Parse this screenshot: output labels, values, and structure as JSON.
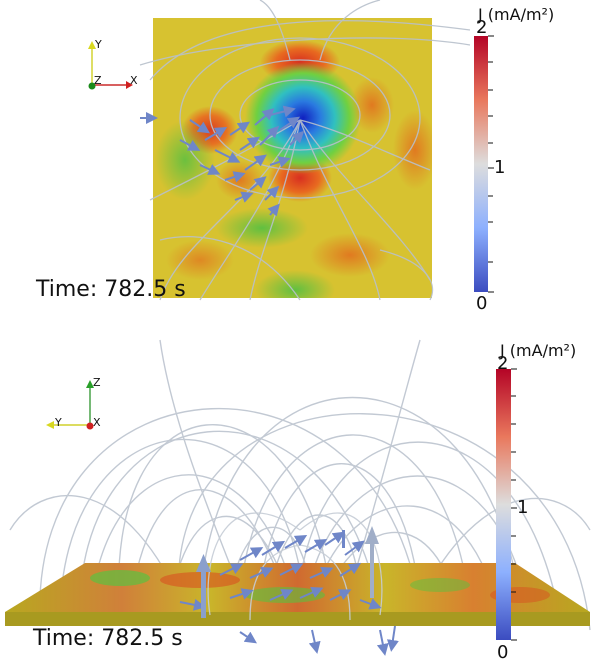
{
  "top_view": {
    "time_label": "Time: 782.5 s",
    "colorbar": {
      "title": "J (mA/m²)",
      "max_label": "2",
      "mid_label": "1",
      "min_label": "0"
    },
    "axes": {
      "up": "Y",
      "out": "Z",
      "right": "X"
    }
  },
  "side_view": {
    "time_label": "Time: 782.5 s",
    "colorbar": {
      "title": "J (mA/m²)",
      "max_label": "2",
      "mid_label": "1",
      "min_label": "0"
    },
    "axes": {
      "up": "Z",
      "left": "Y",
      "out": "X"
    }
  },
  "colors": {
    "colormap_top": "#b40426",
    "colormap_mid": "#dddddd",
    "colormap_bottom": "#3b4cc0",
    "field_line": "#b8c0cc",
    "arrow": "#6f86c8",
    "surface_base": "#c9b52a"
  }
}
